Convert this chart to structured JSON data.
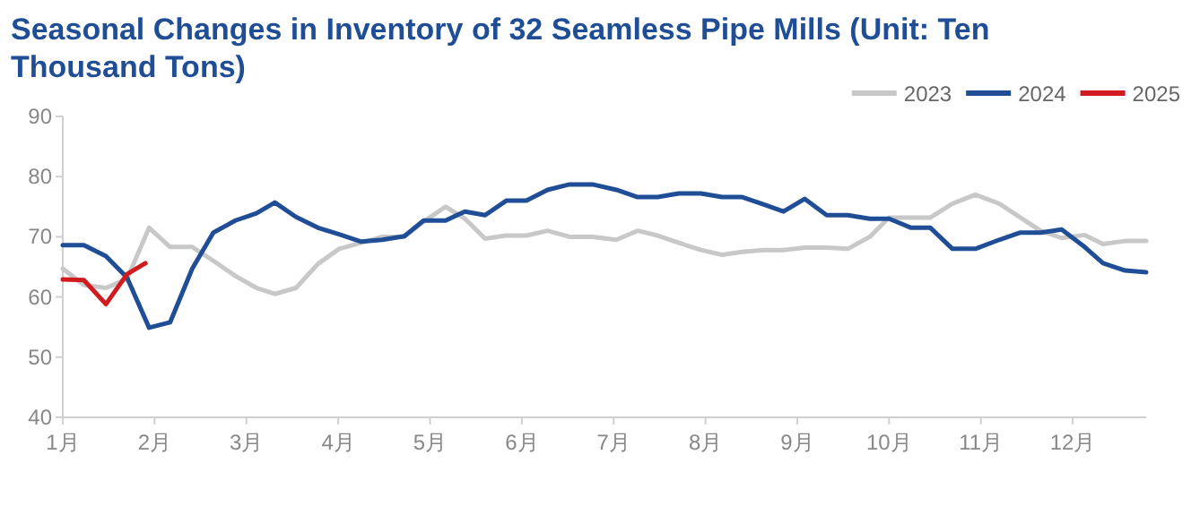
{
  "chart_data": {
    "type": "line",
    "title": "Seasonal Changes in Inventory of 32 Seamless Pipe Mills (Unit: Ten Thousand Tons)",
    "xlim": [
      1,
      12.8
    ],
    "xticks": [
      {
        "value": 1,
        "label": "1月"
      },
      {
        "value": 2,
        "label": "2月"
      },
      {
        "value": 3,
        "label": "3月"
      },
      {
        "value": 4,
        "label": "4月"
      },
      {
        "value": 5,
        "label": "5月"
      },
      {
        "value": 6,
        "label": "6月"
      },
      {
        "value": 7,
        "label": "7月"
      },
      {
        "value": 8,
        "label": "8月"
      },
      {
        "value": 9,
        "label": "9月"
      },
      {
        "value": 10,
        "label": "10月"
      },
      {
        "value": 11,
        "label": "11月"
      },
      {
        "value": 12,
        "label": "12月"
      }
    ],
    "ylim": [
      40,
      90
    ],
    "yticks": [
      40,
      50,
      60,
      70,
      80,
      90
    ],
    "grid": false,
    "legend": "top right",
    "series": [
      {
        "name": "2023",
        "color": "#c8c8c8",
        "x": [
          1.0,
          1.23,
          1.47,
          1.7,
          1.94,
          2.17,
          2.41,
          2.64,
          2.88,
          3.11,
          3.31,
          3.54,
          3.78,
          4.01,
          4.25,
          4.48,
          4.72,
          4.93,
          5.17,
          5.38,
          5.6,
          5.83,
          6.05,
          6.28,
          6.52,
          6.77,
          7.03,
          7.26,
          7.48,
          7.71,
          7.95,
          8.18,
          8.4,
          8.63,
          8.85,
          9.08,
          9.32,
          9.55,
          9.79,
          10.0,
          10.24,
          10.45,
          10.69,
          10.94,
          11.2,
          11.43,
          11.65,
          11.88,
          12.13,
          12.33,
          12.57,
          12.8
        ],
        "values": [
          64.7,
          62.0,
          61.5,
          63.0,
          71.5,
          68.3,
          68.3,
          66.0,
          63.5,
          61.5,
          60.5,
          61.5,
          65.5,
          68.0,
          69.0,
          70.0,
          70.0,
          72.5,
          75.0,
          73.0,
          69.7,
          70.2,
          70.2,
          71.0,
          70.0,
          70.0,
          69.5,
          71.0,
          70.2,
          69.0,
          67.8,
          67.0,
          67.5,
          67.8,
          67.8,
          68.2,
          68.2,
          68.0,
          70.0,
          73.2,
          73.2,
          73.2,
          75.5,
          77.0,
          75.5,
          73.2,
          71.0,
          69.8,
          70.3,
          68.8,
          69.3,
          69.3
        ]
      },
      {
        "name": "2024",
        "color": "#1f4e96",
        "x": [
          1.0,
          1.23,
          1.47,
          1.7,
          1.94,
          2.17,
          2.41,
          2.64,
          2.88,
          3.11,
          3.31,
          3.54,
          3.78,
          4.01,
          4.25,
          4.48,
          4.72,
          4.93,
          5.17,
          5.38,
          5.6,
          5.83,
          6.05,
          6.28,
          6.52,
          6.77,
          7.03,
          7.26,
          7.48,
          7.71,
          7.95,
          8.18,
          8.4,
          8.63,
          8.85,
          9.08,
          9.32,
          9.55,
          9.79,
          10.0,
          10.24,
          10.45,
          10.69,
          10.94,
          11.2,
          11.43,
          11.65,
          11.88,
          12.13,
          12.33,
          12.57,
          12.8
        ],
        "values": [
          68.6,
          68.6,
          66.8,
          63.2,
          54.9,
          55.8,
          64.7,
          70.7,
          72.7,
          73.9,
          75.7,
          73.3,
          71.5,
          70.4,
          69.2,
          69.5,
          70.1,
          72.7,
          72.7,
          74.2,
          73.6,
          76.0,
          76.0,
          77.8,
          78.7,
          78.7,
          77.8,
          76.6,
          76.6,
          77.2,
          77.2,
          76.6,
          76.6,
          75.4,
          74.2,
          76.3,
          73.6,
          73.6,
          73.0,
          73.0,
          71.5,
          71.5,
          68.0,
          68.0,
          69.5,
          70.7,
          70.7,
          71.2,
          68.3,
          65.6,
          64.4,
          64.1
        ]
      },
      {
        "name": "2025",
        "color": "#d01c1f",
        "x": [
          1.0,
          1.23,
          1.47,
          1.7,
          1.9
        ],
        "values": [
          62.9,
          62.8,
          58.8,
          63.8,
          65.6
        ]
      }
    ]
  }
}
